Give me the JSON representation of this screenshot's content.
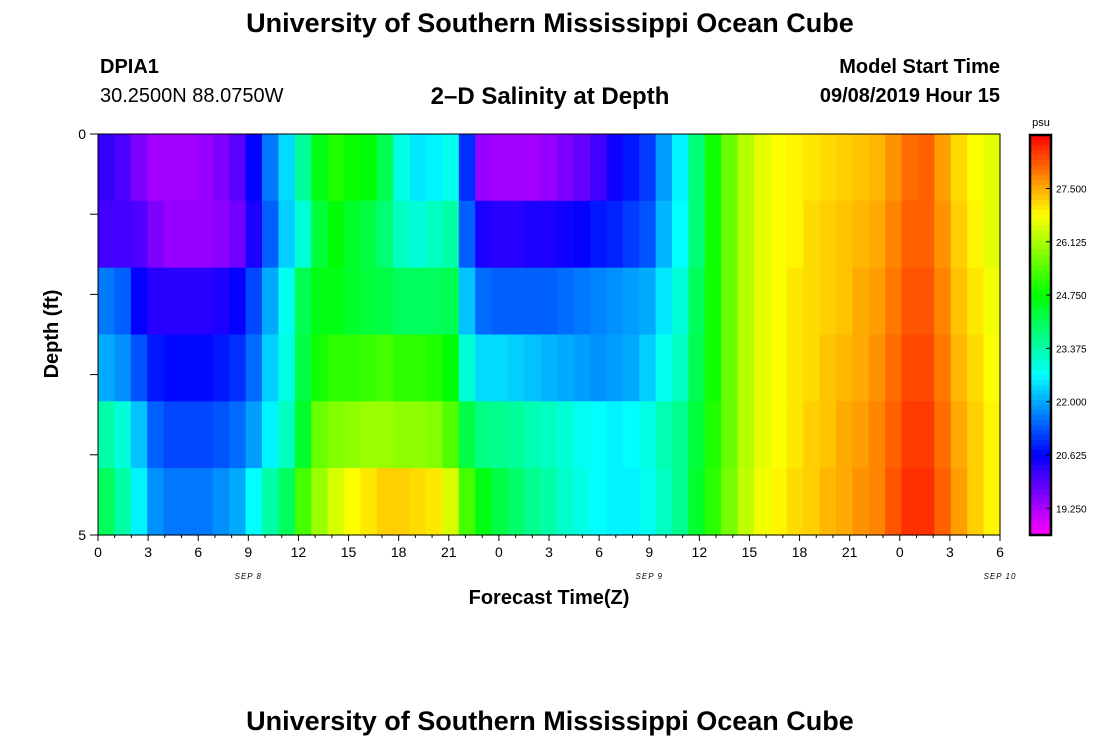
{
  "header": {
    "title": "University of Southern Mississippi Ocean Cube",
    "station_id": "DPIA1",
    "station_coords": "30.2500N 88.0750W",
    "plot_title": "2–D Salinity at Depth",
    "model_start_label": "Model Start Time",
    "model_start_value": "09/08/2019 Hour 15"
  },
  "footer": {
    "title": "University of Southern Mississippi Ocean Cube"
  },
  "chart_data": {
    "type": "heatmap",
    "title": "2–D Salinity at Depth",
    "xlabel": "Forecast Time(Z)",
    "ylabel": "Depth (ft)",
    "x_tick_labels": [
      "0",
      "3",
      "6",
      "9",
      "12",
      "15",
      "18",
      "21",
      "0",
      "3",
      "6",
      "9",
      "12",
      "15",
      "18",
      "21",
      "0",
      "3",
      "6"
    ],
    "date_labels": [
      "SEP 8",
      "SEP 9",
      "SEP 10"
    ],
    "y_tick_labels": [
      "0",
      "5"
    ],
    "ylim": [
      0,
      5
    ],
    "colorbar": {
      "unit": "psu",
      "tick_labels": [
        "27.500",
        "26.125",
        "24.750",
        "23.375",
        "22.000",
        "20.625",
        "19.250"
      ],
      "range": [
        18.56,
        28.88
      ]
    },
    "x_hours": [
      0,
      1,
      2,
      3,
      4,
      5,
      6,
      7,
      8,
      9,
      10,
      11,
      12,
      13,
      14,
      15,
      16,
      17,
      18,
      19,
      20,
      21,
      22,
      23,
      24,
      25,
      26,
      27,
      28,
      29,
      30,
      31,
      32,
      33,
      34,
      35,
      36,
      37,
      38,
      39,
      40,
      41,
      42,
      43,
      44,
      45,
      46,
      47,
      48,
      49,
      50,
      51,
      52,
      53,
      54
    ],
    "depth_rows": [
      0.0,
      1.0,
      2.0,
      3.0,
      4.0,
      5.0
    ],
    "values": [
      [
        20.2,
        20.0,
        19.6,
        19.3,
        19.3,
        19.3,
        19.4,
        19.6,
        19.9,
        20.6,
        21.6,
        22.4,
        23.5,
        24.6,
        25.0,
        24.8,
        24.7,
        24.1,
        22.9,
        22.5,
        22.6,
        22.8,
        21.0,
        19.4,
        19.3,
        19.3,
        19.3,
        19.4,
        19.6,
        19.8,
        20.1,
        20.5,
        20.8,
        21.1,
        21.9,
        22.6,
        23.8,
        24.9,
        25.6,
        26.2,
        26.6,
        26.8,
        26.9,
        27.0,
        27.1,
        27.2,
        27.3,
        27.4,
        27.7,
        28.0,
        28.1,
        27.6,
        27.1,
        26.8,
        26.6
      ],
      [
        20.1,
        20.1,
        20.0,
        19.6,
        19.4,
        19.4,
        19.4,
        19.5,
        19.7,
        20.4,
        21.4,
        22.3,
        23.0,
        24.3,
        24.7,
        24.4,
        24.2,
        23.8,
        23.2,
        23.0,
        23.2,
        23.4,
        21.4,
        20.4,
        20.3,
        20.3,
        20.4,
        20.4,
        20.5,
        20.6,
        20.8,
        20.9,
        21.1,
        21.3,
        22.1,
        22.7,
        23.8,
        24.9,
        25.6,
        26.2,
        26.6,
        26.8,
        26.9,
        27.1,
        27.2,
        27.3,
        27.4,
        27.5,
        27.8,
        28.1,
        28.1,
        27.7,
        27.2,
        26.9,
        26.6
      ],
      [
        21.6,
        21.4,
        20.6,
        20.3,
        20.3,
        20.3,
        20.3,
        20.4,
        20.6,
        21.2,
        22.0,
        22.8,
        24.1,
        24.6,
        24.6,
        24.4,
        24.3,
        24.2,
        24.0,
        24.0,
        24.0,
        24.1,
        22.2,
        21.5,
        21.4,
        21.4,
        21.4,
        21.4,
        21.5,
        21.6,
        21.7,
        21.8,
        21.9,
        22.0,
        22.5,
        23.0,
        24.0,
        24.9,
        25.6,
        26.2,
        26.6,
        26.8,
        27.0,
        27.1,
        27.2,
        27.3,
        27.5,
        27.6,
        27.9,
        28.2,
        28.2,
        27.8,
        27.3,
        27.0,
        26.7
      ],
      [
        22.0,
        21.8,
        21.3,
        20.8,
        20.7,
        20.7,
        20.7,
        20.8,
        21.0,
        21.5,
        22.3,
        22.9,
        24.2,
        24.9,
        25.1,
        25.1,
        25.2,
        25.3,
        25.1,
        25.1,
        25.0,
        24.7,
        23.0,
        22.4,
        22.4,
        22.3,
        22.2,
        22.1,
        22.0,
        21.9,
        21.8,
        21.9,
        22.0,
        22.3,
        22.8,
        23.2,
        24.1,
        24.9,
        25.6,
        26.2,
        26.6,
        26.8,
        27.0,
        27.1,
        27.3,
        27.4,
        27.5,
        27.7,
        28.0,
        28.3,
        28.3,
        27.9,
        27.4,
        27.1,
        26.8
      ],
      [
        23.4,
        23.0,
        22.2,
        21.4,
        21.2,
        21.2,
        21.2,
        21.3,
        21.5,
        21.9,
        22.6,
        23.2,
        24.4,
        25.6,
        25.8,
        25.9,
        26.0,
        26.0,
        25.9,
        25.9,
        25.8,
        25.4,
        24.2,
        23.7,
        23.6,
        23.5,
        23.3,
        23.2,
        23.0,
        22.8,
        22.7,
        22.6,
        22.7,
        22.9,
        23.3,
        23.6,
        24.3,
        25.0,
        25.6,
        26.2,
        26.6,
        26.8,
        27.0,
        27.2,
        27.3,
        27.5,
        27.6,
        27.8,
        28.1,
        28.4,
        28.4,
        28.0,
        27.5,
        27.2,
        26.9
      ],
      [
        24.0,
        23.4,
        22.6,
        21.8,
        21.6,
        21.6,
        21.6,
        21.8,
        22.0,
        22.7,
        23.4,
        24.0,
        25.3,
        26.0,
        26.5,
        26.8,
        27.0,
        27.2,
        27.2,
        27.1,
        27.0,
        26.5,
        25.3,
        24.6,
        24.2,
        23.9,
        23.6,
        23.4,
        23.1,
        22.9,
        22.7,
        22.6,
        22.6,
        22.8,
        23.2,
        23.6,
        24.4,
        25.1,
        25.7,
        26.3,
        26.7,
        26.9,
        27.1,
        27.2,
        27.4,
        27.5,
        27.7,
        27.8,
        28.2,
        28.5,
        28.5,
        28.1,
        27.6,
        27.2,
        26.9
      ]
    ]
  }
}
